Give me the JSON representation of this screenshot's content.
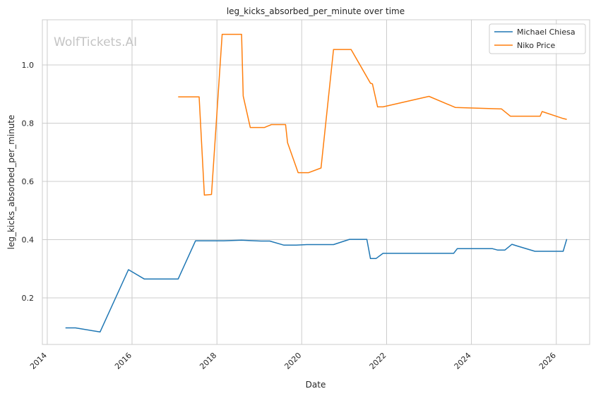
{
  "chart_data": {
    "type": "line",
    "title": "leg_kicks_absorbed_per_minute over time",
    "xlabel": "Date",
    "ylabel": "leg_kicks_absorbed_per_minute",
    "watermark": "WolfTickets.AI",
    "xlim": [
      "2013-11-20",
      "2026-10-15"
    ],
    "ylim": [
      0.04,
      1.155
    ],
    "x_ticks": [
      "2014",
      "2016",
      "2018",
      "2020",
      "2022",
      "2024",
      "2026"
    ],
    "y_ticks": [
      "0.2",
      "0.4",
      "0.6",
      "0.8",
      "1.0"
    ],
    "grid": true,
    "legend_position": "top-right",
    "series": [
      {
        "name": "Michael Chiesa",
        "color": "#1f77b4",
        "points": [
          [
            "2014-06-07",
            0.097
          ],
          [
            "2014-09-01",
            0.097
          ],
          [
            "2015-04-01",
            0.083
          ],
          [
            "2015-12-01",
            0.297
          ],
          [
            "2016-04-15",
            0.265
          ],
          [
            "2017-02-01",
            0.265
          ],
          [
            "2017-07-01",
            0.396
          ],
          [
            "2018-03-01",
            0.396
          ],
          [
            "2018-08-01",
            0.398
          ],
          [
            "2018-10-01",
            0.397
          ],
          [
            "2019-01-15",
            0.395
          ],
          [
            "2019-04-01",
            0.395
          ],
          [
            "2019-08-01",
            0.381
          ],
          [
            "2019-11-15",
            0.381
          ],
          [
            "2020-02-15",
            0.383
          ],
          [
            "2020-10-01",
            0.383
          ],
          [
            "2021-02-15",
            0.401
          ],
          [
            "2021-07-15",
            0.401
          ],
          [
            "2021-08-15",
            0.335
          ],
          [
            "2021-10-01",
            0.335
          ],
          [
            "2021-12-01",
            0.353
          ],
          [
            "2023-08-01",
            0.353
          ],
          [
            "2023-09-01",
            0.369
          ],
          [
            "2024-07-01",
            0.369
          ],
          [
            "2024-08-15",
            0.364
          ],
          [
            "2024-10-15",
            0.364
          ],
          [
            "2024-12-15",
            0.384
          ],
          [
            "2025-02-01",
            0.378
          ],
          [
            "2025-07-01",
            0.36
          ],
          [
            "2026-03-01",
            0.36
          ],
          [
            "2026-04-01",
            0.402
          ]
        ]
      },
      {
        "name": "Niko Price",
        "color": "#ff7f0e",
        "points": [
          [
            "2017-02-01",
            0.89
          ],
          [
            "2017-08-01",
            0.89
          ],
          [
            "2017-09-15",
            0.553
          ],
          [
            "2017-11-15",
            0.555
          ],
          [
            "2018-02-15",
            1.105
          ],
          [
            "2018-08-01",
            1.105
          ],
          [
            "2018-08-15",
            0.893
          ],
          [
            "2018-10-15",
            0.785
          ],
          [
            "2019-02-15",
            0.785
          ],
          [
            "2019-04-15",
            0.795
          ],
          [
            "2019-08-15",
            0.795
          ],
          [
            "2019-09-01",
            0.733
          ],
          [
            "2019-12-01",
            0.63
          ],
          [
            "2020-03-01",
            0.63
          ],
          [
            "2020-06-15",
            0.646
          ],
          [
            "2020-10-01",
            1.053
          ],
          [
            "2021-03-01",
            1.053
          ],
          [
            "2021-08-15",
            0.937
          ],
          [
            "2021-09-01",
            0.935
          ],
          [
            "2021-10-15",
            0.856
          ],
          [
            "2021-12-01",
            0.856
          ],
          [
            "2023-01-01",
            0.892
          ],
          [
            "2023-08-15",
            0.854
          ],
          [
            "2024-09-01",
            0.849
          ],
          [
            "2024-09-15",
            0.849
          ],
          [
            "2024-12-01",
            0.824
          ],
          [
            "2025-08-15",
            0.824
          ],
          [
            "2025-09-01",
            0.84
          ],
          [
            "2026-03-01",
            0.816
          ],
          [
            "2026-04-01",
            0.813
          ]
        ]
      }
    ]
  }
}
